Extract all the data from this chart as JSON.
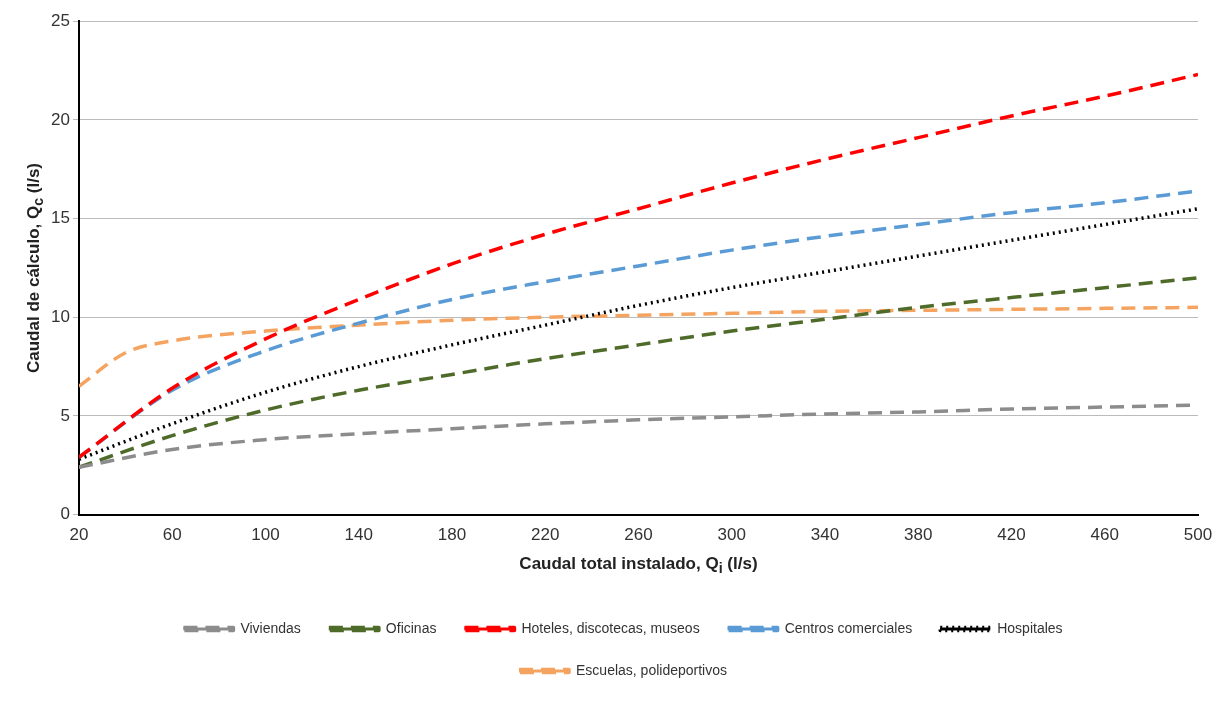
{
  "chart_data": {
    "type": "line",
    "xlabel": "Caudal total instalado, Q$_{i}$ (l/s)",
    "ylabel": "Caudal de cálculo, Q$_{c}$ (l/s)",
    "x": [
      20,
      60,
      100,
      140,
      180,
      220,
      260,
      300,
      340,
      380,
      420,
      460,
      500
    ],
    "xlim": [
      20,
      500
    ],
    "xticks": [
      20,
      60,
      100,
      140,
      180,
      220,
      260,
      300,
      340,
      380,
      420,
      460,
      500
    ],
    "ylim": [
      0,
      25
    ],
    "yticks": [
      0,
      5,
      10,
      15,
      20,
      25
    ],
    "grid": "y",
    "legend": "bottom",
    "marker": "none",
    "series": [
      {
        "name": "Viviendas",
        "color": "#8c8c8c",
        "line_style": "dashed",
        "values": [
          2.4,
          3.3,
          3.8,
          4.1,
          4.35,
          4.6,
          4.8,
          4.95,
          5.1,
          5.2,
          5.35,
          5.45,
          5.55
        ]
      },
      {
        "name": "Oficinas",
        "color": "#4e6b2a",
        "line_style": "dashed",
        "values": [
          2.4,
          4.0,
          5.3,
          6.3,
          7.1,
          7.9,
          8.6,
          9.3,
          9.9,
          10.5,
          11.0,
          11.5,
          12.0
        ]
      },
      {
        "name": "Hoteles, discotecas, museos",
        "color": "#ff0000",
        "line_style": "dashed",
        "values": [
          2.9,
          6.4,
          8.9,
          10.9,
          12.7,
          14.2,
          15.5,
          16.8,
          18.0,
          19.1,
          20.2,
          21.2,
          22.3
        ]
      },
      {
        "name": "Centros comerciales",
        "color": "#5b9bd5",
        "line_style": "dashed",
        "values": [
          2.9,
          6.3,
          8.3,
          9.7,
          10.9,
          11.8,
          12.6,
          13.4,
          14.1,
          14.7,
          15.3,
          15.8,
          16.4
        ]
      },
      {
        "name": "Hospitales",
        "color": "#000000",
        "line_style": "dotted",
        "values": [
          2.8,
          4.6,
          6.2,
          7.5,
          8.6,
          9.6,
          10.6,
          11.5,
          12.3,
          13.1,
          13.9,
          14.7,
          15.5
        ]
      },
      {
        "name": "Escuelas, polideportivos",
        "color": "#f4a460",
        "line_style": "dashed",
        "x": [
          20,
          40,
          60,
          100,
          140,
          180,
          220,
          260,
          300,
          340,
          380,
          420,
          460,
          500
        ],
        "values": [
          6.5,
          8.2,
          8.8,
          9.3,
          9.6,
          9.85,
          10.0,
          10.1,
          10.2,
          10.3,
          10.35,
          10.4,
          10.45,
          10.5
        ]
      }
    ]
  }
}
